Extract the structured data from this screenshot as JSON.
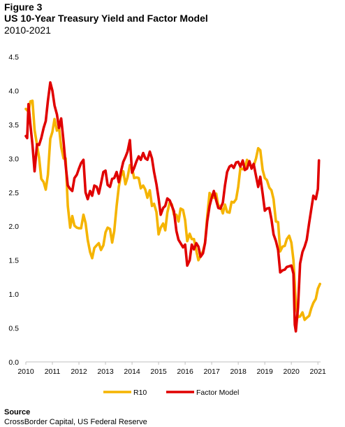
{
  "figure_label": "Figure 3",
  "title": "US 10-Year Treasury Yield and Factor Model",
  "subtitle": "2010-2021",
  "source_label": "Source",
  "source_text": "CrossBorder Capital, US Federal Reserve",
  "colors": {
    "R10": "#F5B400",
    "Factor Model": "#E00000",
    "axis": "#bfbfbf"
  },
  "chart_data": {
    "type": "line",
    "xlim": [
      2010,
      2021.1
    ],
    "ylim": [
      0,
      4.5
    ],
    "x_ticks": [
      2010,
      2011,
      2012,
      2013,
      2014,
      2015,
      2016,
      2017,
      2018,
      2019,
      2020,
      2021
    ],
    "x_tick_labels": [
      "2010",
      "2011",
      "2012",
      "2013",
      "2014",
      "2015",
      "2016",
      "2017",
      "2018",
      "2019",
      "2020",
      "2021"
    ],
    "y_ticks": [
      0,
      0.5,
      1.0,
      1.5,
      2.0,
      2.5,
      3.0,
      3.5,
      4.0,
      4.5
    ],
    "y_tick_labels": [
      "0.0",
      "0.5",
      "1.0",
      "1.5",
      "2.0",
      "2.5",
      "3.0",
      "3.5",
      "4.0",
      "4.5"
    ],
    "grid": false,
    "legend_position": "bottom-center",
    "series": [
      {
        "name": "R10",
        "color": "#F5B400",
        "points": [
          [
            2010.0,
            3.73
          ],
          [
            2010.1,
            3.69
          ],
          [
            2010.17,
            3.84
          ],
          [
            2010.25,
            3.85
          ],
          [
            2010.33,
            3.42
          ],
          [
            2010.42,
            3.2
          ],
          [
            2010.5,
            3.01
          ],
          [
            2010.58,
            2.7
          ],
          [
            2010.67,
            2.65
          ],
          [
            2010.75,
            2.54
          ],
          [
            2010.83,
            2.76
          ],
          [
            2010.92,
            3.29
          ],
          [
            2011.0,
            3.39
          ],
          [
            2011.08,
            3.58
          ],
          [
            2011.17,
            3.41
          ],
          [
            2011.25,
            3.46
          ],
          [
            2011.33,
            3.17
          ],
          [
            2011.42,
            3.0
          ],
          [
            2011.5,
            3.0
          ],
          [
            2011.58,
            2.3
          ],
          [
            2011.67,
            1.98
          ],
          [
            2011.75,
            2.15
          ],
          [
            2011.83,
            2.01
          ],
          [
            2011.92,
            1.98
          ],
          [
            2012.0,
            1.97
          ],
          [
            2012.08,
            1.97
          ],
          [
            2012.17,
            2.17
          ],
          [
            2012.25,
            2.05
          ],
          [
            2012.33,
            1.8
          ],
          [
            2012.42,
            1.62
          ],
          [
            2012.5,
            1.53
          ],
          [
            2012.58,
            1.68
          ],
          [
            2012.67,
            1.72
          ],
          [
            2012.75,
            1.75
          ],
          [
            2012.83,
            1.65
          ],
          [
            2012.92,
            1.72
          ],
          [
            2013.0,
            1.91
          ],
          [
            2013.08,
            1.98
          ],
          [
            2013.17,
            1.96
          ],
          [
            2013.25,
            1.76
          ],
          [
            2013.33,
            1.93
          ],
          [
            2013.42,
            2.3
          ],
          [
            2013.5,
            2.58
          ],
          [
            2013.58,
            2.74
          ],
          [
            2013.67,
            2.81
          ],
          [
            2013.75,
            2.62
          ],
          [
            2013.83,
            2.72
          ],
          [
            2013.92,
            2.9
          ],
          [
            2014.0,
            2.86
          ],
          [
            2014.08,
            2.71
          ],
          [
            2014.17,
            2.72
          ],
          [
            2014.25,
            2.71
          ],
          [
            2014.33,
            2.56
          ],
          [
            2014.42,
            2.6
          ],
          [
            2014.5,
            2.54
          ],
          [
            2014.58,
            2.42
          ],
          [
            2014.67,
            2.53
          ],
          [
            2014.75,
            2.3
          ],
          [
            2014.83,
            2.33
          ],
          [
            2014.92,
            2.21
          ],
          [
            2015.0,
            1.88
          ],
          [
            2015.08,
            1.98
          ],
          [
            2015.17,
            2.04
          ],
          [
            2015.25,
            1.94
          ],
          [
            2015.33,
            2.2
          ],
          [
            2015.42,
            2.36
          ],
          [
            2015.5,
            2.32
          ],
          [
            2015.58,
            2.17
          ],
          [
            2015.67,
            2.17
          ],
          [
            2015.75,
            2.07
          ],
          [
            2015.83,
            2.26
          ],
          [
            2015.92,
            2.24
          ],
          [
            2016.0,
            2.09
          ],
          [
            2016.08,
            1.78
          ],
          [
            2016.17,
            1.89
          ],
          [
            2016.25,
            1.81
          ],
          [
            2016.33,
            1.81
          ],
          [
            2016.42,
            1.64
          ],
          [
            2016.5,
            1.5
          ],
          [
            2016.58,
            1.56
          ],
          [
            2016.67,
            1.63
          ],
          [
            2016.75,
            1.76
          ],
          [
            2016.83,
            2.14
          ],
          [
            2016.92,
            2.49
          ],
          [
            2017.0,
            2.43
          ],
          [
            2017.08,
            2.42
          ],
          [
            2017.17,
            2.48
          ],
          [
            2017.25,
            2.3
          ],
          [
            2017.33,
            2.3
          ],
          [
            2017.42,
            2.19
          ],
          [
            2017.5,
            2.32
          ],
          [
            2017.58,
            2.21
          ],
          [
            2017.67,
            2.2
          ],
          [
            2017.75,
            2.36
          ],
          [
            2017.83,
            2.35
          ],
          [
            2017.92,
            2.4
          ],
          [
            2018.0,
            2.58
          ],
          [
            2018.08,
            2.86
          ],
          [
            2018.17,
            2.84
          ],
          [
            2018.25,
            2.87
          ],
          [
            2018.33,
            2.98
          ],
          [
            2018.42,
            2.91
          ],
          [
            2018.5,
            2.89
          ],
          [
            2018.58,
            2.89
          ],
          [
            2018.67,
            3.0
          ],
          [
            2018.75,
            3.15
          ],
          [
            2018.83,
            3.12
          ],
          [
            2018.92,
            2.83
          ],
          [
            2019.0,
            2.71
          ],
          [
            2019.08,
            2.68
          ],
          [
            2019.17,
            2.57
          ],
          [
            2019.25,
            2.53
          ],
          [
            2019.33,
            2.4
          ],
          [
            2019.42,
            2.07
          ],
          [
            2019.5,
            2.06
          ],
          [
            2019.58,
            1.63
          ],
          [
            2019.67,
            1.7
          ],
          [
            2019.75,
            1.71
          ],
          [
            2019.83,
            1.81
          ],
          [
            2019.92,
            1.86
          ],
          [
            2020.0,
            1.76
          ],
          [
            2020.08,
            1.5
          ],
          [
            2020.17,
            0.87
          ],
          [
            2020.25,
            0.66
          ],
          [
            2020.33,
            0.67
          ],
          [
            2020.42,
            0.73
          ],
          [
            2020.5,
            0.62
          ],
          [
            2020.58,
            0.65
          ],
          [
            2020.67,
            0.68
          ],
          [
            2020.75,
            0.79
          ],
          [
            2020.83,
            0.87
          ],
          [
            2020.92,
            0.93
          ],
          [
            2021.0,
            1.08
          ],
          [
            2021.08,
            1.15
          ]
        ]
      },
      {
        "name": "Factor Model",
        "color": "#E00000",
        "points": [
          [
            2010.0,
            3.33
          ],
          [
            2010.05,
            3.3
          ],
          [
            2010.1,
            3.8
          ],
          [
            2010.17,
            3.5
          ],
          [
            2010.25,
            3.2
          ],
          [
            2010.33,
            2.81
          ],
          [
            2010.42,
            3.21
          ],
          [
            2010.5,
            3.2
          ],
          [
            2010.58,
            3.3
          ],
          [
            2010.67,
            3.45
          ],
          [
            2010.75,
            3.55
          ],
          [
            2010.83,
            3.85
          ],
          [
            2010.92,
            4.12
          ],
          [
            2011.0,
            4.0
          ],
          [
            2011.08,
            3.78
          ],
          [
            2011.17,
            3.65
          ],
          [
            2011.25,
            3.45
          ],
          [
            2011.33,
            3.59
          ],
          [
            2011.42,
            3.25
          ],
          [
            2011.5,
            2.9
          ],
          [
            2011.58,
            2.6
          ],
          [
            2011.67,
            2.55
          ],
          [
            2011.75,
            2.52
          ],
          [
            2011.83,
            2.71
          ],
          [
            2011.92,
            2.76
          ],
          [
            2012.0,
            2.85
          ],
          [
            2012.08,
            2.93
          ],
          [
            2012.17,
            2.98
          ],
          [
            2012.25,
            2.5
          ],
          [
            2012.33,
            2.4
          ],
          [
            2012.42,
            2.52
          ],
          [
            2012.5,
            2.45
          ],
          [
            2012.58,
            2.6
          ],
          [
            2012.67,
            2.58
          ],
          [
            2012.75,
            2.48
          ],
          [
            2012.83,
            2.63
          ],
          [
            2012.92,
            2.8
          ],
          [
            2013.0,
            2.82
          ],
          [
            2013.08,
            2.61
          ],
          [
            2013.17,
            2.58
          ],
          [
            2013.25,
            2.7
          ],
          [
            2013.33,
            2.71
          ],
          [
            2013.42,
            2.8
          ],
          [
            2013.5,
            2.65
          ],
          [
            2013.58,
            2.8
          ],
          [
            2013.67,
            2.95
          ],
          [
            2013.75,
            3.02
          ],
          [
            2013.83,
            3.1
          ],
          [
            2013.92,
            3.27
          ],
          [
            2014.0,
            2.79
          ],
          [
            2014.08,
            2.86
          ],
          [
            2014.17,
            2.96
          ],
          [
            2014.25,
            3.03
          ],
          [
            2014.33,
            2.98
          ],
          [
            2014.42,
            3.08
          ],
          [
            2014.5,
            3.0
          ],
          [
            2014.58,
            2.98
          ],
          [
            2014.67,
            3.1
          ],
          [
            2014.75,
            3.0
          ],
          [
            2014.83,
            2.8
          ],
          [
            2014.92,
            2.62
          ],
          [
            2015.0,
            2.41
          ],
          [
            2015.08,
            2.17
          ],
          [
            2015.17,
            2.27
          ],
          [
            2015.25,
            2.3
          ],
          [
            2015.33,
            2.41
          ],
          [
            2015.42,
            2.38
          ],
          [
            2015.5,
            2.3
          ],
          [
            2015.58,
            2.22
          ],
          [
            2015.67,
            1.93
          ],
          [
            2015.75,
            1.8
          ],
          [
            2015.83,
            1.75
          ],
          [
            2015.92,
            1.69
          ],
          [
            2016.0,
            1.73
          ],
          [
            2016.08,
            1.42
          ],
          [
            2016.17,
            1.5
          ],
          [
            2016.25,
            1.73
          ],
          [
            2016.33,
            1.66
          ],
          [
            2016.42,
            1.75
          ],
          [
            2016.5,
            1.7
          ],
          [
            2016.58,
            1.55
          ],
          [
            2016.67,
            1.6
          ],
          [
            2016.75,
            1.75
          ],
          [
            2016.83,
            2.07
          ],
          [
            2016.92,
            2.3
          ],
          [
            2017.0,
            2.42
          ],
          [
            2017.08,
            2.52
          ],
          [
            2017.17,
            2.38
          ],
          [
            2017.25,
            2.27
          ],
          [
            2017.33,
            2.26
          ],
          [
            2017.42,
            2.35
          ],
          [
            2017.5,
            2.6
          ],
          [
            2017.58,
            2.8
          ],
          [
            2017.67,
            2.88
          ],
          [
            2017.75,
            2.9
          ],
          [
            2017.83,
            2.86
          ],
          [
            2017.92,
            2.94
          ],
          [
            2018.0,
            2.95
          ],
          [
            2018.08,
            2.88
          ],
          [
            2018.17,
            2.97
          ],
          [
            2018.25,
            2.83
          ],
          [
            2018.33,
            2.85
          ],
          [
            2018.42,
            2.96
          ],
          [
            2018.5,
            2.85
          ],
          [
            2018.58,
            2.92
          ],
          [
            2018.67,
            2.74
          ],
          [
            2018.75,
            2.58
          ],
          [
            2018.83,
            2.73
          ],
          [
            2018.92,
            2.48
          ],
          [
            2019.0,
            2.23
          ],
          [
            2019.08,
            2.26
          ],
          [
            2019.17,
            2.27
          ],
          [
            2019.25,
            2.1
          ],
          [
            2019.33,
            1.88
          ],
          [
            2019.42,
            1.78
          ],
          [
            2019.5,
            1.65
          ],
          [
            2019.58,
            1.32
          ],
          [
            2019.67,
            1.35
          ],
          [
            2019.75,
            1.36
          ],
          [
            2019.83,
            1.4
          ],
          [
            2019.92,
            1.41
          ],
          [
            2020.0,
            1.42
          ],
          [
            2020.08,
            1.3
          ],
          [
            2020.13,
            0.55
          ],
          [
            2020.17,
            0.45
          ],
          [
            2020.25,
            0.8
          ],
          [
            2020.33,
            1.45
          ],
          [
            2020.42,
            1.62
          ],
          [
            2020.5,
            1.7
          ],
          [
            2020.58,
            1.8
          ],
          [
            2020.67,
            2.05
          ],
          [
            2020.75,
            2.25
          ],
          [
            2020.83,
            2.45
          ],
          [
            2020.92,
            2.4
          ],
          [
            2021.0,
            2.55
          ],
          [
            2021.04,
            2.97
          ]
        ]
      }
    ]
  }
}
